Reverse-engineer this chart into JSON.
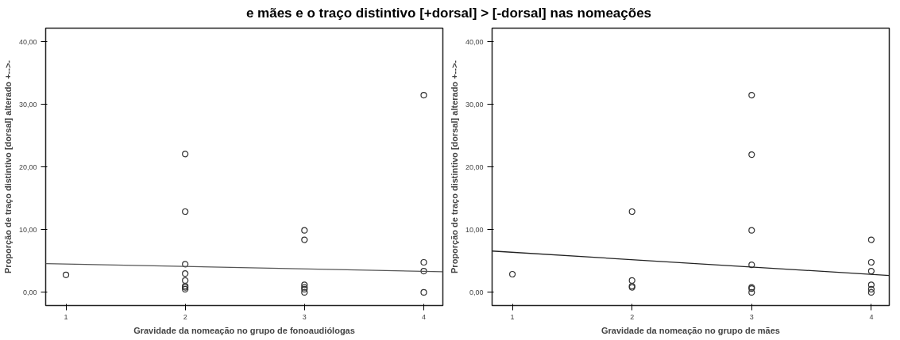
{
  "chart_data": [
    {
      "type": "scatter",
      "title": "e mães e o traço distintivo [+dorsal] > [-dorsal] nas nomeações",
      "xlabel": "Gravidade da nomeação no grupo de fonoaudiólogas",
      "ylabel": "Proporção de traço distintivo [dorsal] alterado +-->-",
      "xlim": [
        0.83,
        4.16
      ],
      "ylim": [
        -2.1,
        42.2
      ],
      "xticks": [
        1,
        2,
        3,
        4
      ],
      "yticks": [
        {
          "value": 0,
          "label": "0,00"
        },
        {
          "value": 10,
          "label": "10,00"
        },
        {
          "value": 20,
          "label": "20,00"
        },
        {
          "value": 30,
          "label": "30,00"
        },
        {
          "value": 40,
          "label": "40,00"
        }
      ],
      "grid": false,
      "series": [
        {
          "marker": "circle",
          "color": "#333333",
          "x": [
            1,
            2,
            2,
            2,
            2,
            2,
            2,
            2,
            2,
            3,
            3,
            3,
            3,
            3,
            3,
            4,
            4,
            4,
            4
          ],
          "values": [
            2.8,
            22.1,
            12.9,
            4.5,
            3.0,
            1.9,
            1.0,
            0.8,
            0.5,
            9.9,
            8.4,
            1.2,
            0.8,
            0.5,
            0,
            31.5,
            4.8,
            3.4,
            0
          ]
        },
        {
          "type": "line",
          "color": "#555555",
          "x": [
            0.83,
            4.16
          ],
          "values": [
            4.6,
            3.3
          ]
        }
      ]
    },
    {
      "type": "scatter",
      "xlabel": "Gravidade da nomeação no grupo de mães",
      "ylabel": "Proporção de traço distintivo [dorsal] alterado +-->-",
      "xlim": [
        0.83,
        4.15
      ],
      "ylim": [
        -2.1,
        42.2
      ],
      "xticks": [
        1,
        2,
        3,
        4
      ],
      "yticks": [
        {
          "value": 0,
          "label": "0,00"
        },
        {
          "value": 10,
          "label": "10,00"
        },
        {
          "value": 20,
          "label": "20,00"
        },
        {
          "value": 30,
          "label": "30,00"
        },
        {
          "value": 40,
          "label": "40,00"
        }
      ],
      "grid": false,
      "series": [
        {
          "marker": "circle",
          "color": "#333333",
          "x": [
            1,
            2,
            2,
            2,
            2,
            3,
            3,
            3,
            3,
            3,
            3,
            3,
            4,
            4,
            4,
            4,
            4,
            4
          ],
          "values": [
            2.9,
            12.9,
            1.9,
            1.0,
            0.8,
            31.5,
            22.0,
            9.9,
            4.4,
            0.8,
            0.6,
            0,
            8.4,
            4.8,
            3.4,
            1.2,
            0.5,
            0
          ]
        },
        {
          "type": "line",
          "color": "#222222",
          "x": [
            0.83,
            4.15
          ],
          "values": [
            6.6,
            2.7
          ]
        }
      ]
    }
  ]
}
